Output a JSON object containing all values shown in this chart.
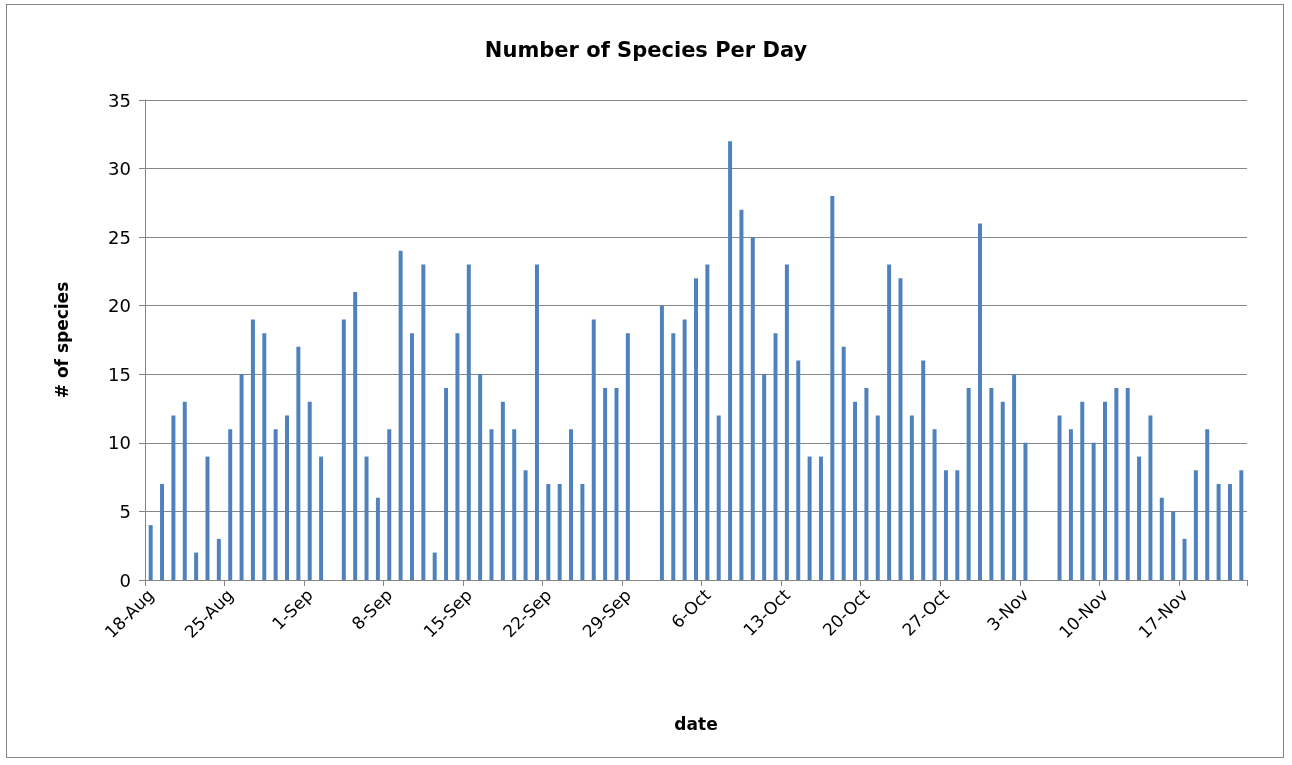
{
  "chart_data": {
    "type": "bar",
    "title": "Number of Species Per Day",
    "xlabel": "date",
    "ylabel": "# of species",
    "categories": [
      "18-Aug",
      null,
      null,
      null,
      null,
      null,
      null,
      "25-Aug",
      null,
      null,
      null,
      null,
      null,
      null,
      "1-Sep",
      null,
      null,
      null,
      null,
      null,
      null,
      "8-Sep",
      null,
      null,
      null,
      null,
      null,
      null,
      "15-Sep",
      null,
      null,
      null,
      null,
      null,
      null,
      "22-Sep",
      null,
      null,
      null,
      null,
      null,
      null,
      "29-Sep",
      null,
      null,
      null,
      null,
      null,
      null,
      "6-Oct",
      null,
      null,
      null,
      null,
      null,
      null,
      "13-Oct",
      null,
      null,
      null,
      null,
      null,
      null,
      "20-Oct",
      null,
      null,
      null,
      null,
      null,
      null,
      "27-Oct",
      null,
      null,
      null,
      null,
      null,
      null,
      "3-Nov",
      null,
      null,
      null,
      null,
      null,
      null,
      "10-Nov",
      null,
      null,
      null,
      null,
      null,
      null,
      "17-Nov",
      null,
      null,
      null,
      null,
      null
    ],
    "values": [
      4,
      7,
      12,
      13,
      2,
      9,
      3,
      11,
      15,
      19,
      18,
      11,
      12,
      17,
      13,
      9,
      null,
      19,
      21,
      9,
      6,
      11,
      24,
      18,
      23,
      2,
      14,
      18,
      23,
      15,
      11,
      13,
      11,
      8,
      23,
      7,
      7,
      11,
      7,
      19,
      14,
      14,
      18,
      null,
      null,
      20,
      18,
      19,
      22,
      23,
      12,
      32,
      27,
      25,
      15,
      18,
      23,
      16,
      9,
      9,
      28,
      17,
      13,
      14,
      12,
      23,
      22,
      12,
      16,
      11,
      8,
      8,
      14,
      26,
      14,
      13,
      15,
      10,
      null,
      null,
      12,
      11,
      13,
      10,
      13,
      14,
      14,
      9,
      12,
      6,
      5,
      3,
      8,
      11,
      7,
      7,
      8
    ],
    "color": "#4f81bd",
    "ylim": [
      0,
      35
    ],
    "yticks": [
      0,
      5,
      10,
      15,
      20,
      25,
      30,
      35
    ],
    "grid": "y"
  }
}
